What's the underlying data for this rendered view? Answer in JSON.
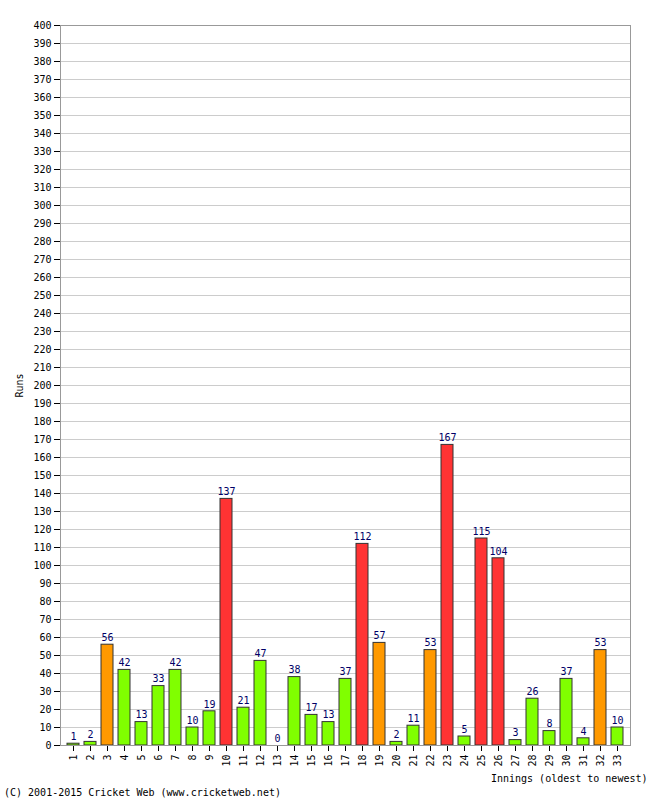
{
  "chart_data": {
    "type": "bar",
    "caption": "(C) 2001-2015 Cricket Web (www.cricketweb.net)",
    "x_label": "Innings (oldest to newest)",
    "y_label": "Runs",
    "categories": [
      "1",
      "2",
      "3",
      "4",
      "5",
      "6",
      "7",
      "8",
      "9",
      "10",
      "11",
      "12",
      "13",
      "14",
      "15",
      "16",
      "17",
      "18",
      "19",
      "20",
      "21",
      "22",
      "23",
      "24",
      "25",
      "26",
      "27",
      "28",
      "29",
      "30",
      "31",
      "32",
      "33"
    ],
    "values": [
      1,
      2,
      56,
      42,
      13,
      33,
      42,
      10,
      19,
      137,
      21,
      47,
      0,
      38,
      17,
      13,
      37,
      112,
      57,
      2,
      11,
      53,
      167,
      5,
      115,
      104,
      3,
      26,
      8,
      37,
      4,
      53,
      10
    ],
    "colors": [
      "#80ff00",
      "#80ff00",
      "#ff9900",
      "#80ff00",
      "#80ff00",
      "#80ff00",
      "#80ff00",
      "#80ff00",
      "#80ff00",
      "#ff3333",
      "#80ff00",
      "#80ff00",
      "#80ff00",
      "#80ff00",
      "#80ff00",
      "#80ff00",
      "#80ff00",
      "#ff3333",
      "#ff9900",
      "#80ff00",
      "#80ff00",
      "#ff9900",
      "#ff3333",
      "#80ff00",
      "#ff3333",
      "#ff3333",
      "#80ff00",
      "#80ff00",
      "#80ff00",
      "#80ff00",
      "#80ff00",
      "#ff9900",
      "#80ff00"
    ],
    "ylim": [
      0,
      400
    ],
    "yticks": [
      0,
      10,
      20,
      30,
      40,
      50,
      60,
      70,
      80,
      90,
      100,
      110,
      120,
      130,
      140,
      150,
      160,
      170,
      180,
      190,
      200,
      210,
      220,
      230,
      240,
      250,
      260,
      270,
      280,
      290,
      300,
      310,
      320,
      330,
      340,
      350,
      360,
      370,
      380,
      390,
      400
    ],
    "grid": true,
    "data_labels": true
  }
}
